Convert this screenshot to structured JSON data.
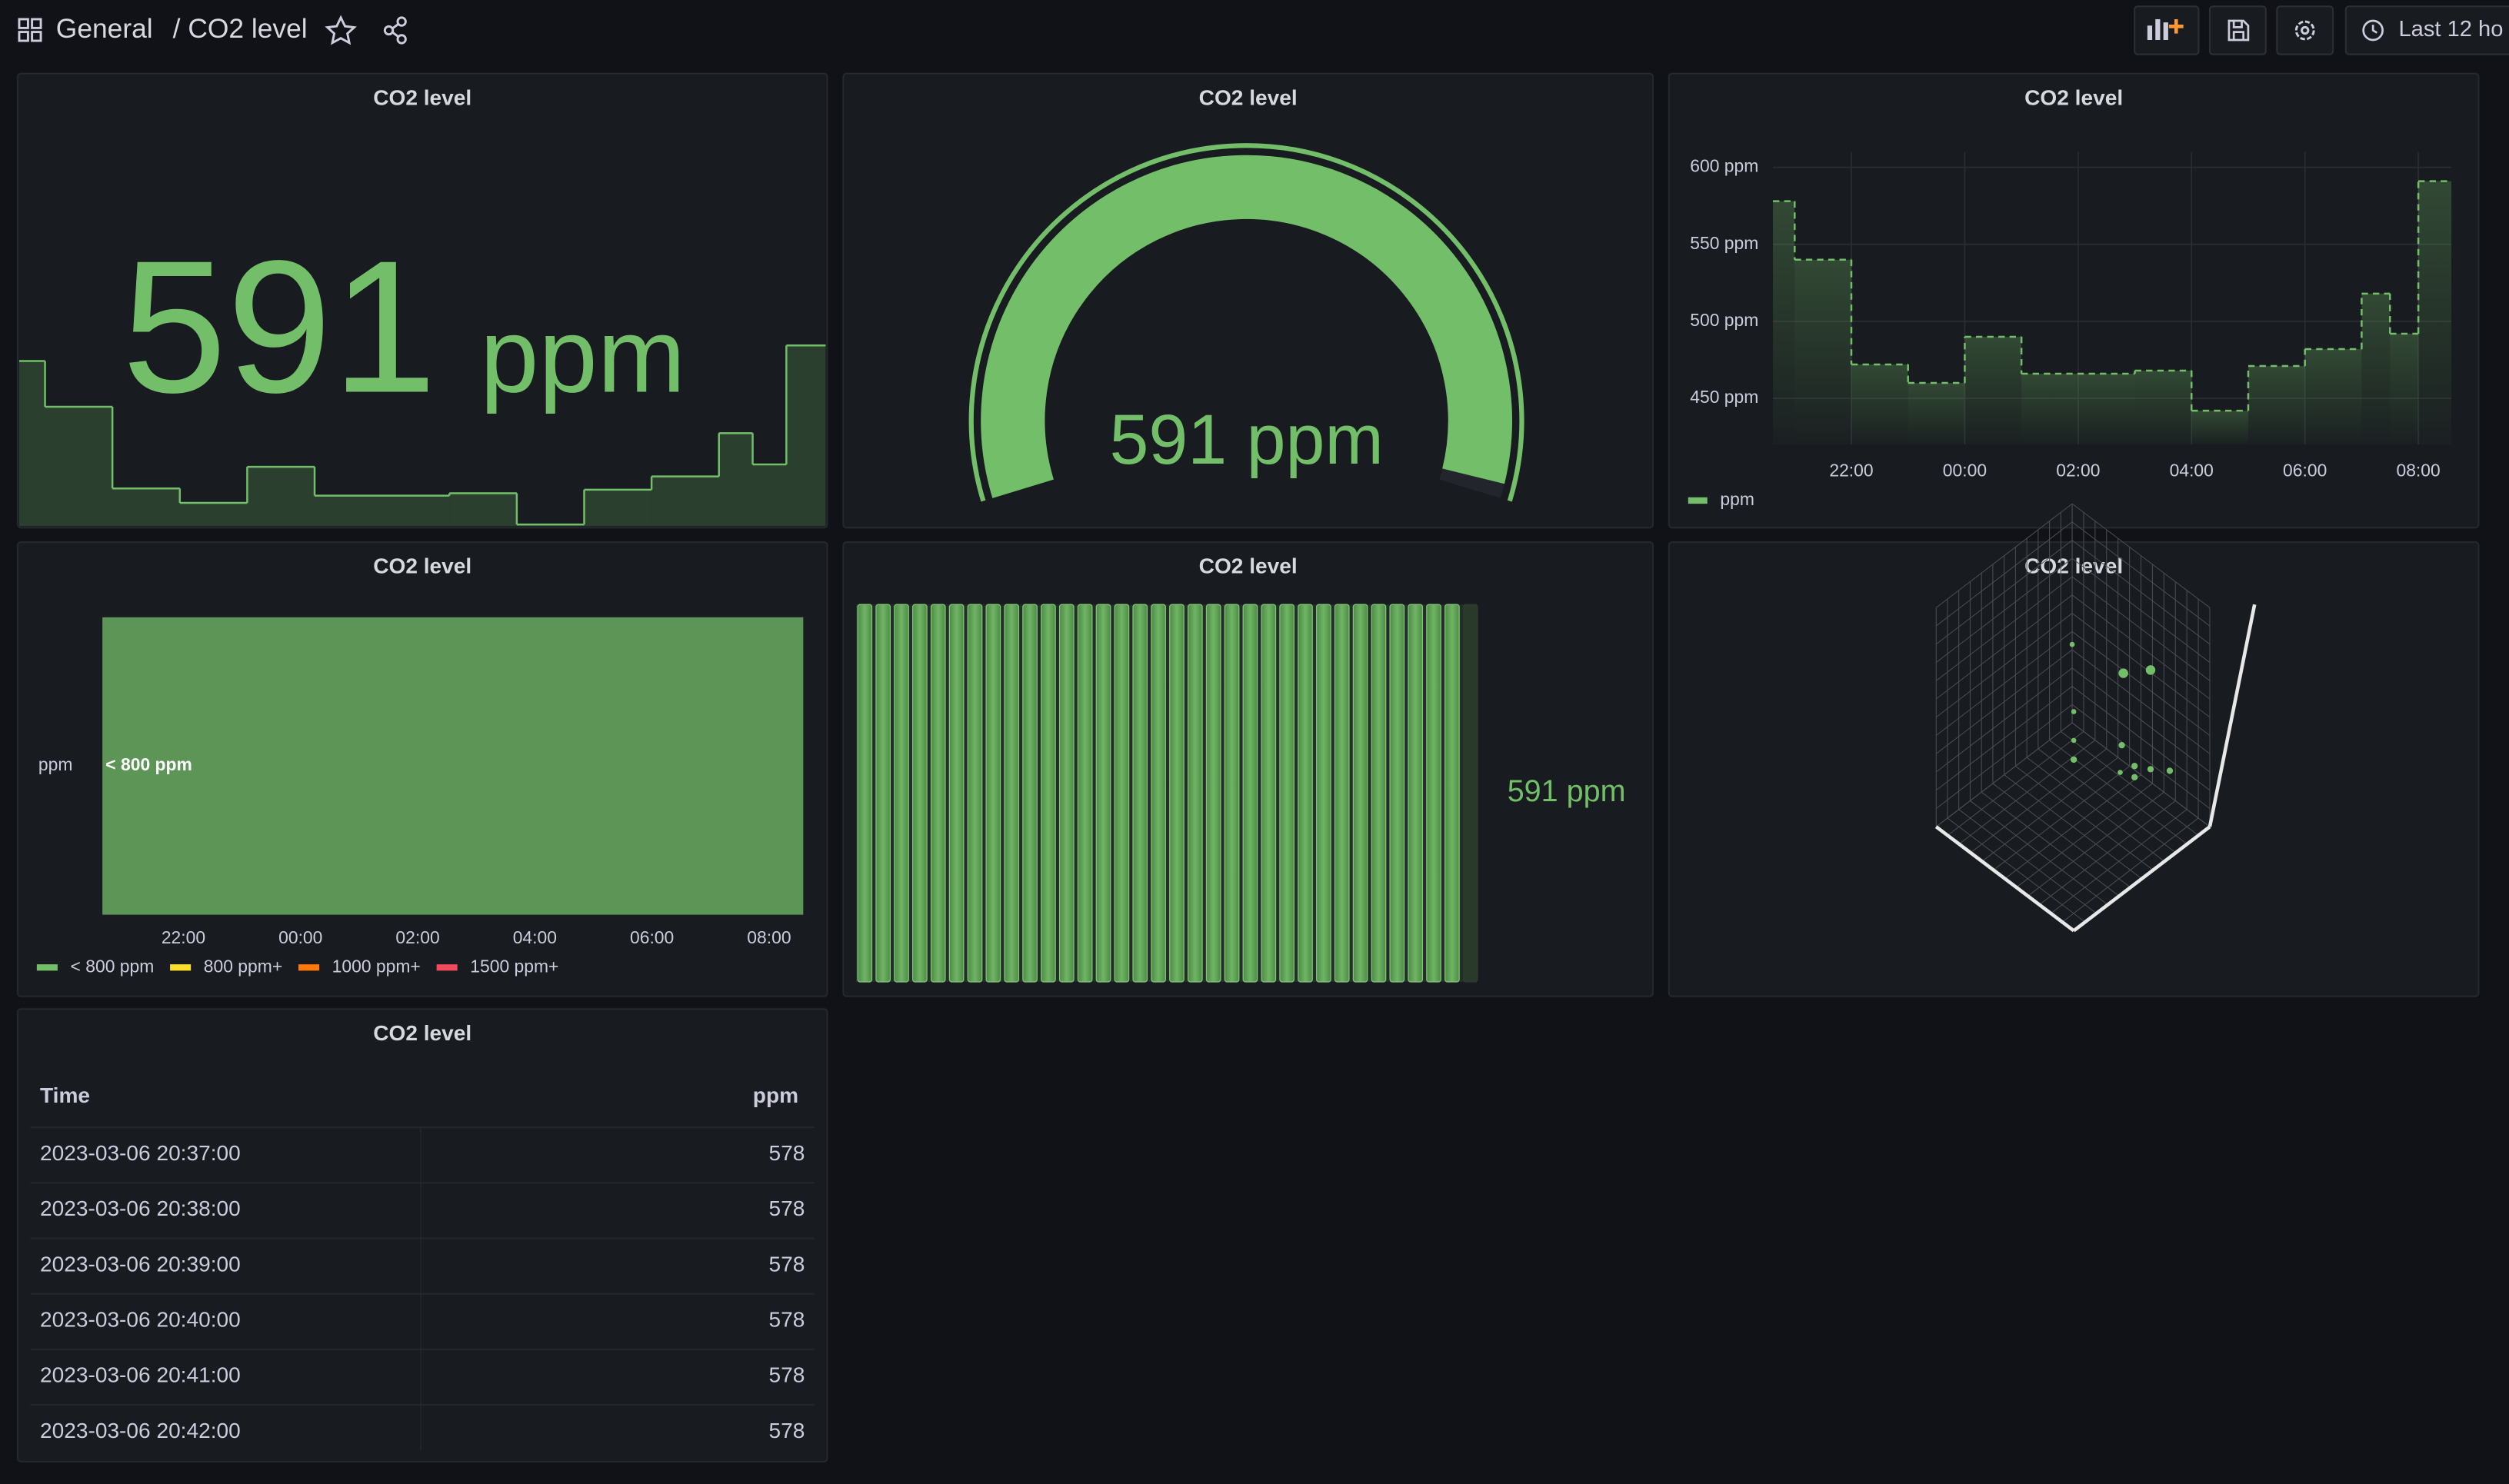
{
  "header": {
    "folder": "General",
    "title": "/ CO2 level",
    "time_range": "Last 12 ho"
  },
  "chart_data": [
    {
      "type": "stat",
      "title": "CO2 level",
      "value": 591,
      "unit": "ppm",
      "color": "#73bf69"
    },
    {
      "type": "gauge",
      "title": "CO2 level",
      "value": 591,
      "value_label": "591 ppm",
      "range": [
        0,
        600
      ],
      "color": "#73bf69"
    },
    {
      "type": "line",
      "title": "CO2 level",
      "step": true,
      "grid": true,
      "x": [
        "20:37",
        "21:00",
        "22:00",
        "23:00",
        "00:00",
        "01:00",
        "03:00",
        "04:00",
        "05:00",
        "06:00",
        "07:00",
        "07:30",
        "08:00"
      ],
      "series": [
        {
          "name": "ppm",
          "color": "#73bf69",
          "values": [
            578,
            540,
            472,
            460,
            490,
            466,
            468,
            442,
            471,
            482,
            518,
            492,
            591
          ]
        }
      ],
      "xlim": [
        "20:37",
        "08:35"
      ],
      "xticks": [
        "22:00",
        "00:00",
        "02:00",
        "04:00",
        "06:00",
        "08:00"
      ],
      "ylim": [
        420,
        610
      ],
      "yticks": [
        {
          "value": 450,
          "label": "450 ppm"
        },
        {
          "value": 500,
          "label": "500 ppm"
        },
        {
          "value": 550,
          "label": "550 ppm"
        },
        {
          "value": 600,
          "label": "600 ppm"
        }
      ]
    },
    {
      "type": "state-timeline",
      "title": "CO2 level",
      "categories": [
        "ppm"
      ],
      "values": [
        "< 800 ppm"
      ],
      "xlim": [
        "20:37",
        "08:35"
      ],
      "xticks": [
        "22:00",
        "00:00",
        "02:00",
        "04:00",
        "06:00",
        "08:00"
      ],
      "legend": [
        {
          "name": "< 800 ppm",
          "color": "#73bf69"
        },
        {
          "name": "800 ppm+",
          "color": "#fade2a"
        },
        {
          "name": "1000 ppm+",
          "color": "#ff780a"
        },
        {
          "name": "1500 ppm+",
          "color": "#f2495c"
        }
      ]
    },
    {
      "type": "bar-gauge",
      "title": "CO2 level",
      "value": 591,
      "value_label": "591 ppm",
      "range": [
        0,
        600
      ],
      "color": "#73bf69"
    },
    {
      "type": "scatter3d",
      "title": "CO2 level"
    }
  ],
  "table": {
    "title": "CO2 level",
    "columns": [
      "Time",
      "ppm"
    ],
    "rows": [
      [
        "2023-03-06 20:37:00",
        578
      ],
      [
        "2023-03-06 20:38:00",
        578
      ],
      [
        "2023-03-06 20:39:00",
        578
      ],
      [
        "2023-03-06 20:40:00",
        578
      ],
      [
        "2023-03-06 20:41:00",
        578
      ],
      [
        "2023-03-06 20:42:00",
        578
      ]
    ]
  }
}
